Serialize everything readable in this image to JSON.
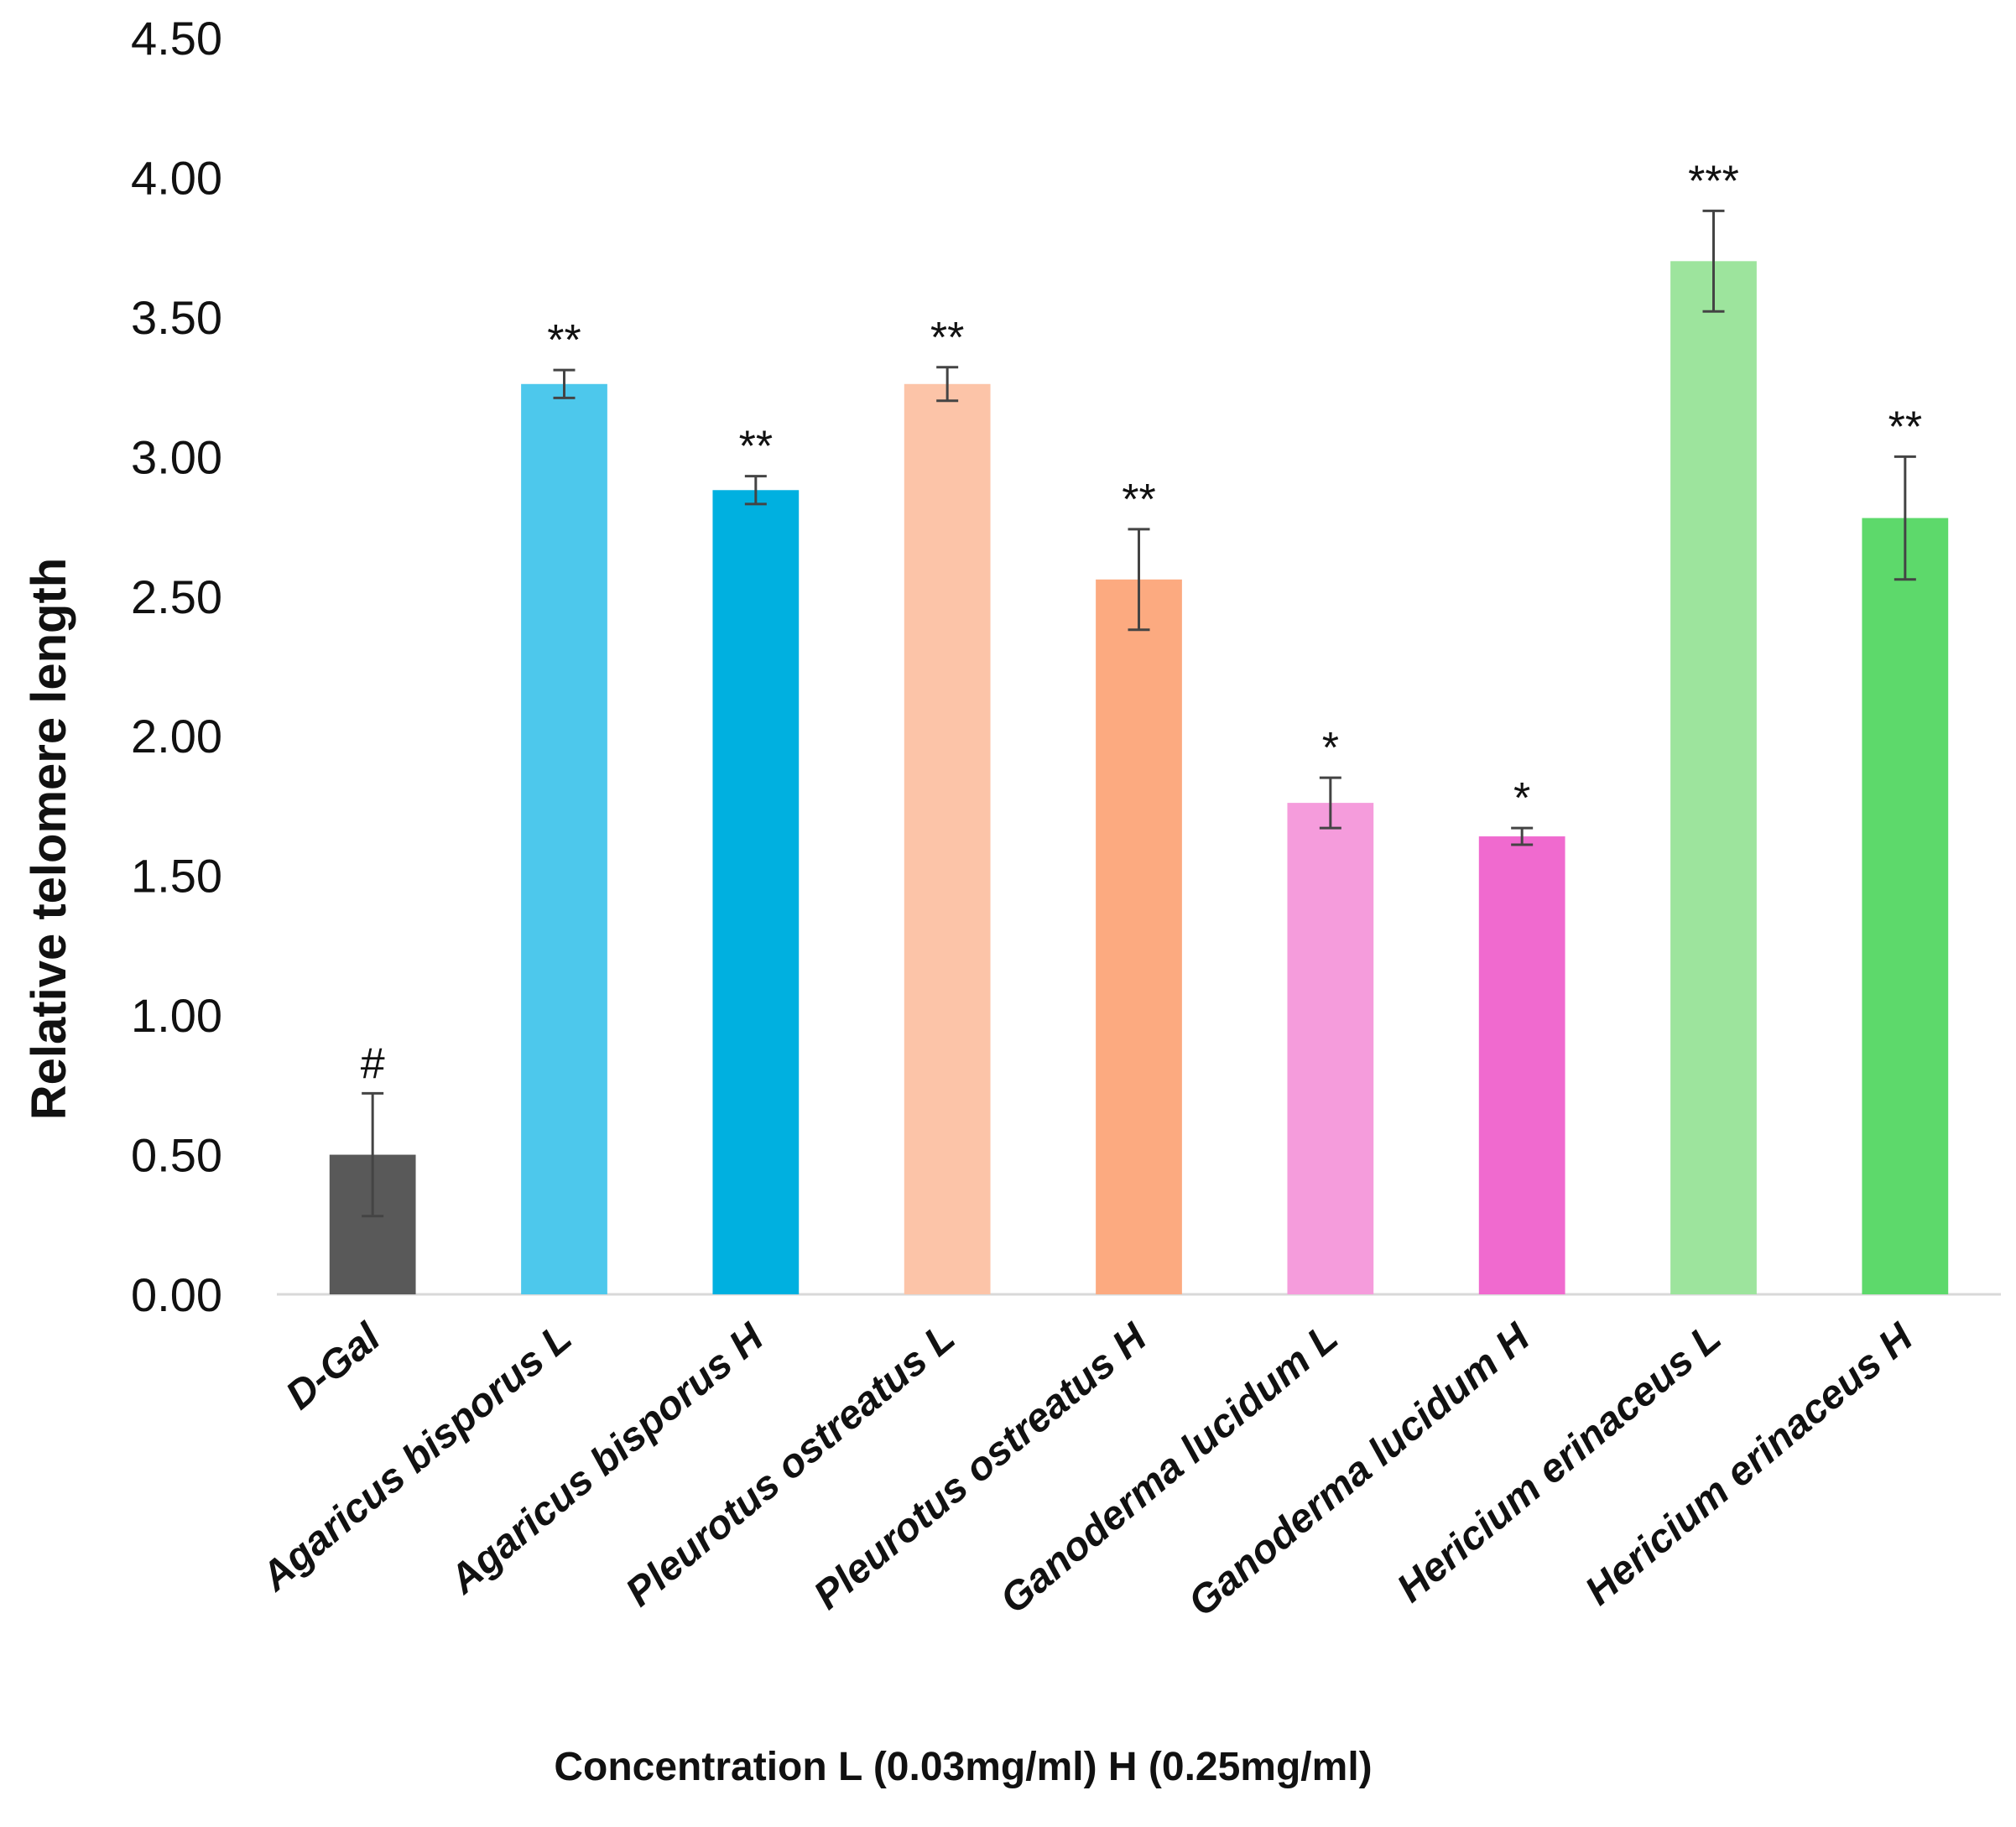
{
  "chart_data": {
    "type": "bar",
    "title": "",
    "xlabel": "Concentration L (0.03mg/ml)  H (0.25mg/ml)",
    "ylabel": "Relative telomere length",
    "ylim": [
      0,
      4.5
    ],
    "yticks": [
      "0.00",
      "0.50",
      "1.00",
      "1.50",
      "2.00",
      "2.50",
      "3.00",
      "3.50",
      "4.00",
      "4.50"
    ],
    "grid": false,
    "categories": [
      "D-Gal",
      "Agaricus bisporus L",
      "Agaricus bisporus  H",
      "Pleurotus ostreatus L",
      "Pleurotus ostreatus  H",
      "Ganoderma lucidum  L",
      "Ganoderma lucidum  H",
      "Hericium erinaceus  L",
      "Hericium erinaceus  H"
    ],
    "values": [
      0.5,
      3.26,
      2.88,
      3.26,
      2.56,
      1.76,
      1.64,
      3.7,
      2.78
    ],
    "errors": [
      0.22,
      0.05,
      0.05,
      0.06,
      0.18,
      0.09,
      0.03,
      0.18,
      0.22
    ],
    "significance": [
      "#",
      "**",
      "**",
      "**",
      "**",
      "*",
      "*",
      "***",
      "**"
    ],
    "colors": [
      "#595959",
      "#4DC8EC",
      "#00B0E0",
      "#FCC4A8",
      "#FCAA80",
      "#F59CDC",
      "#F06ACF",
      "#9DE49D",
      "#5DD96B"
    ]
  }
}
